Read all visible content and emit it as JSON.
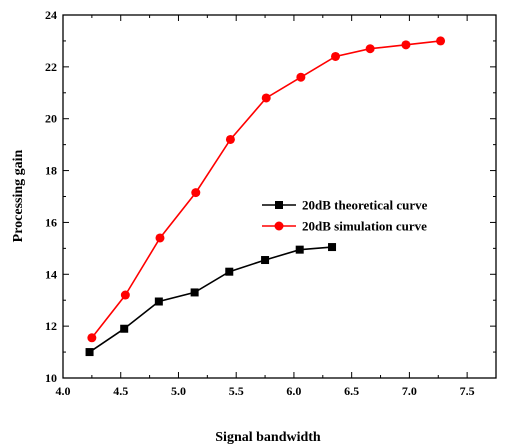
{
  "chart_data": {
    "type": "line",
    "title": "",
    "xlabel": "Signal bandwidth",
    "ylabel": "Processing gain",
    "xlim": [
      4.0,
      7.75
    ],
    "ylim": [
      10,
      24
    ],
    "x_ticks": [
      "4.0",
      "4.5",
      "5.0",
      "5.5",
      "6.0",
      "6.5",
      "7.0",
      "7.5"
    ],
    "y_ticks": [
      "10",
      "12",
      "14",
      "16",
      "18",
      "20",
      "22",
      "24"
    ],
    "grid": false,
    "legend_position": "center-right",
    "series": [
      {
        "name": "20dB theoretical curve",
        "color": "#000000",
        "marker": "square",
        "x": [
          4.23,
          4.53,
          4.83,
          5.14,
          5.44,
          5.75,
          6.05,
          6.33
        ],
        "y": [
          11.0,
          11.9,
          12.95,
          13.3,
          14.1,
          14.55,
          14.95,
          15.05
        ]
      },
      {
        "name": "20dB simulation curve",
        "color": "#ff0000",
        "marker": "circle",
        "x": [
          4.25,
          4.54,
          4.84,
          5.15,
          5.45,
          5.76,
          6.06,
          6.36,
          6.66,
          6.97,
          7.27
        ],
        "y": [
          11.55,
          13.2,
          15.4,
          17.15,
          19.2,
          20.8,
          21.6,
          22.4,
          22.7,
          22.85,
          23.0
        ]
      }
    ]
  }
}
